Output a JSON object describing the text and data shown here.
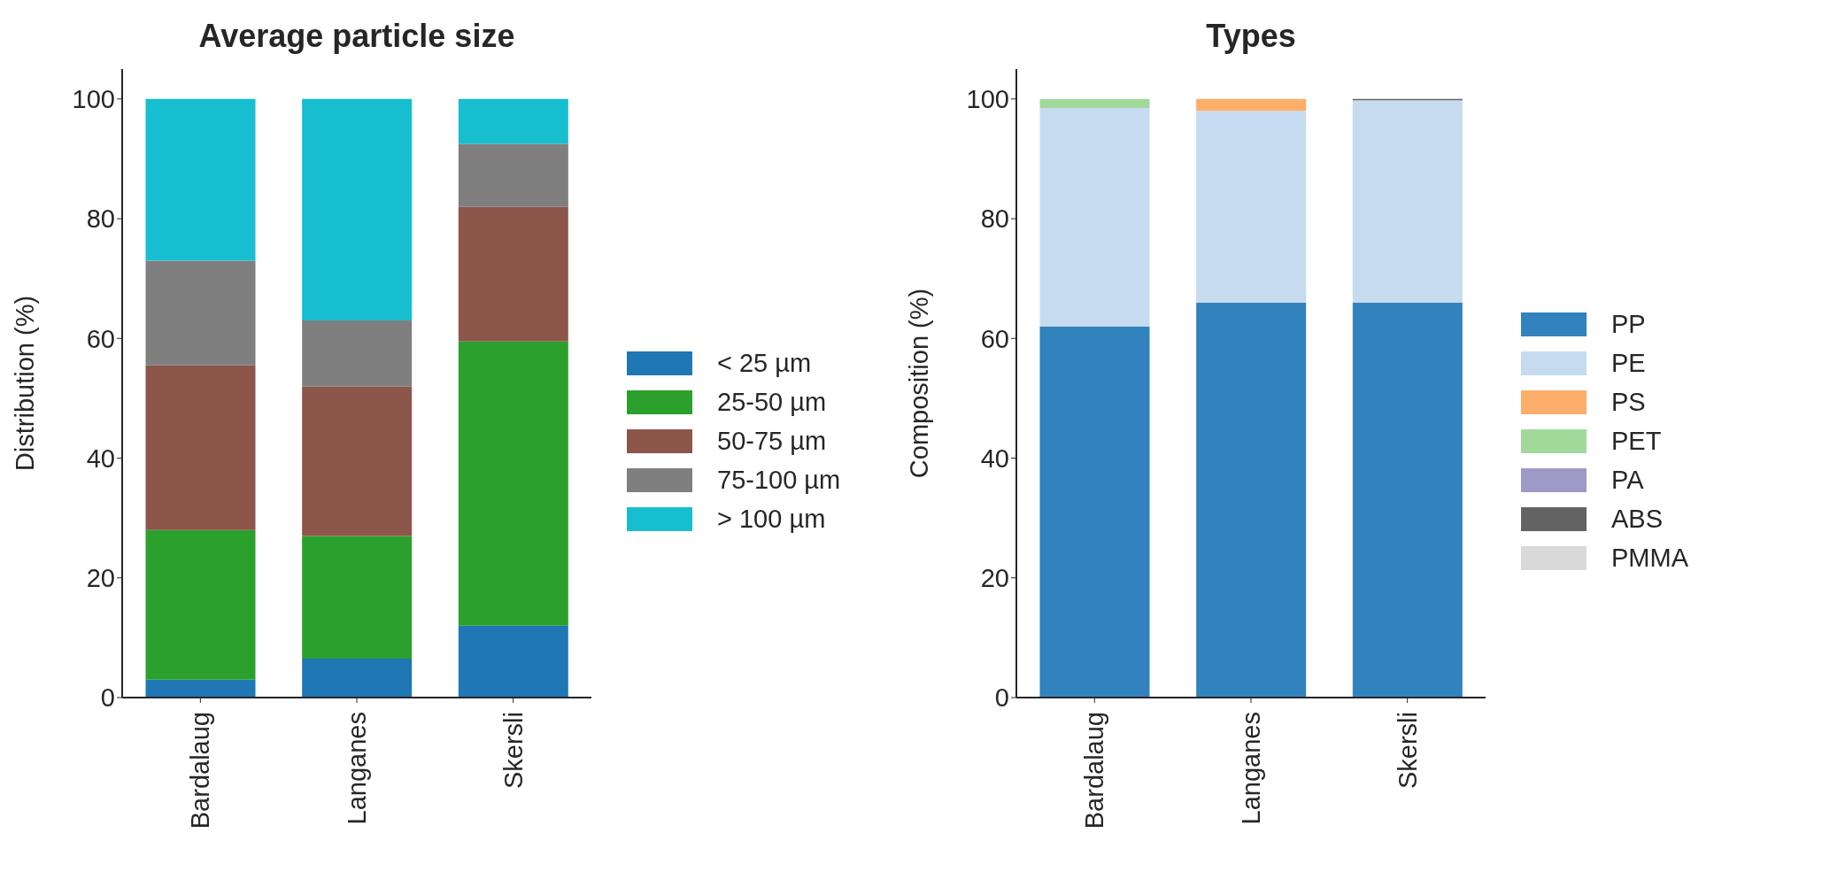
{
  "chart_data": [
    {
      "type": "bar",
      "title": "Average particle size",
      "ylabel": "Distribution (%)",
      "categories": [
        "Bardalaug",
        "Langanes",
        "Skersli"
      ],
      "stacked": true,
      "legend": "right",
      "ylim": [
        0,
        105
      ],
      "yticks": [
        0,
        20,
        40,
        60,
        80,
        100
      ],
      "grid": false,
      "series": [
        {
          "name": "< 25 µm",
          "color": "#1f77b4",
          "values": [
            3,
            6.5,
            12
          ]
        },
        {
          "name": "25-50 µm",
          "color": "#2ca02c",
          "values": [
            25,
            20.5,
            47.5
          ]
        },
        {
          "name": "50-75 µm",
          "color": "#8c564b",
          "values": [
            27.5,
            25,
            22.5
          ]
        },
        {
          "name": "75-100 µm",
          "color": "#7f7f7f",
          "values": [
            17.5,
            11,
            10.5
          ]
        },
        {
          "name": "> 100 µm",
          "color": "#17becf",
          "values": [
            27,
            37,
            7.5
          ]
        }
      ]
    },
    {
      "type": "bar",
      "title": "Types",
      "ylabel": "Composition (%)",
      "categories": [
        "Bardalaug",
        "Langanes",
        "Skersli"
      ],
      "stacked": true,
      "legend": "right",
      "ylim": [
        0,
        105
      ],
      "yticks": [
        0,
        20,
        40,
        60,
        80,
        100
      ],
      "grid": false,
      "series": [
        {
          "name": "PP",
          "color": "#3182bd",
          "values": [
            62,
            66,
            66
          ]
        },
        {
          "name": "PE",
          "color": "#c6dbef",
          "values": [
            36.5,
            32,
            33.8
          ]
        },
        {
          "name": "PS",
          "color": "#fdae6b",
          "values": [
            0,
            2,
            0
          ]
        },
        {
          "name": "PET",
          "color": "#a1d99b",
          "values": [
            1.5,
            0,
            0
          ]
        },
        {
          "name": "PA",
          "color": "#9e9ac8",
          "values": [
            0,
            0,
            0
          ]
        },
        {
          "name": "ABS",
          "color": "#636363",
          "values": [
            0,
            0,
            0.2
          ]
        },
        {
          "name": "PMMA",
          "color": "#d9d9d9",
          "values": [
            0,
            0,
            0
          ]
        }
      ]
    }
  ]
}
